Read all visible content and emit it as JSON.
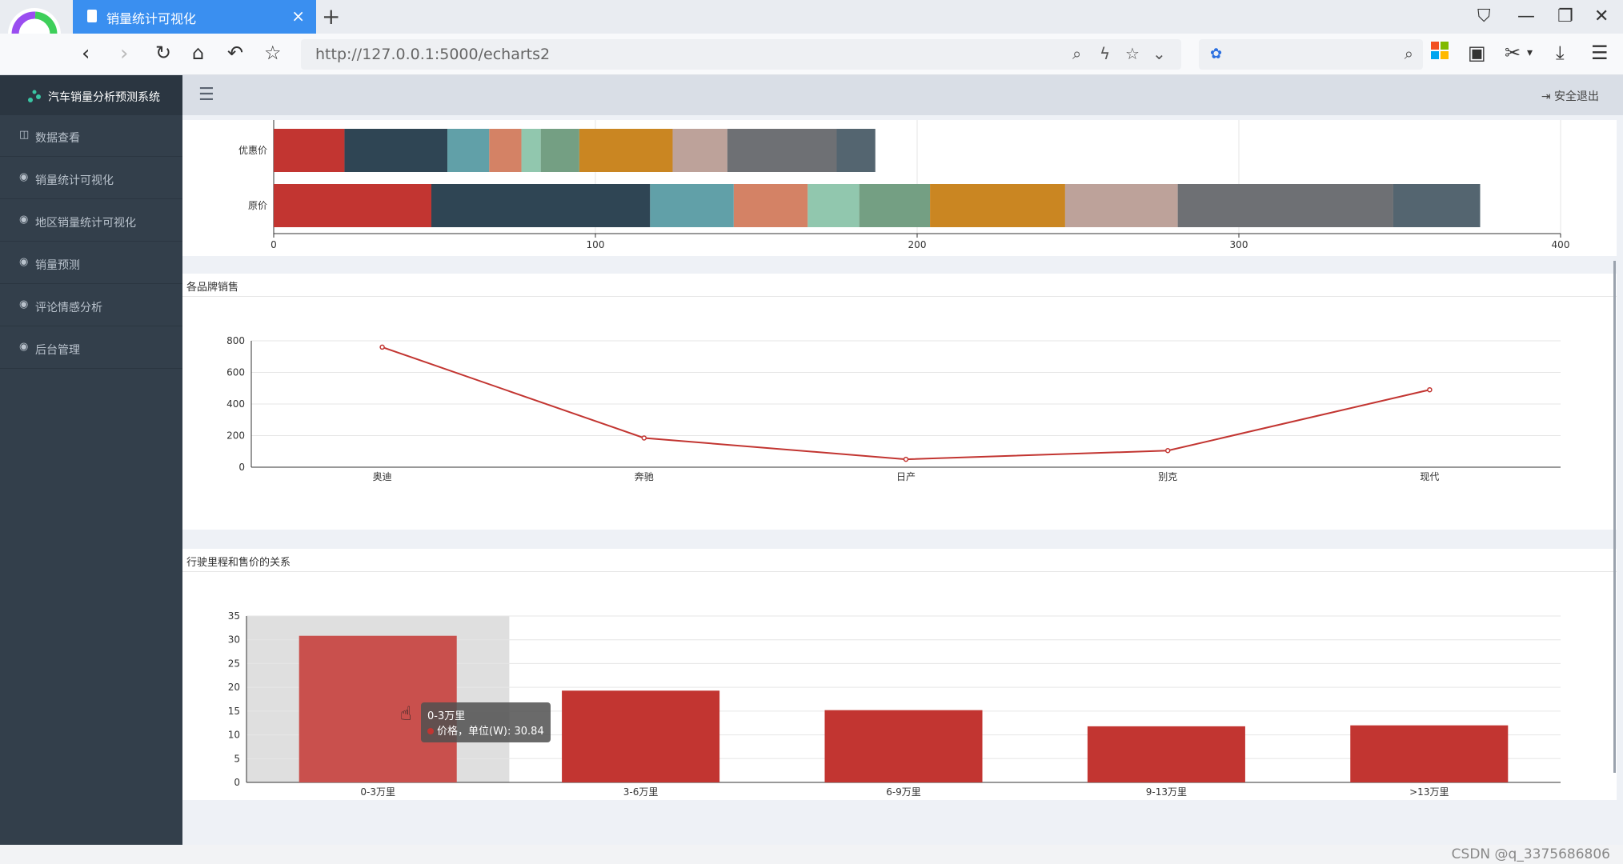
{
  "browser": {
    "tab_title": "销量统计可视化",
    "url": "http://127.0.0.1:5000/echarts2"
  },
  "app": {
    "brand": "汽车销量分析预测系统",
    "logout": "安全退出",
    "menu": [
      {
        "label": "数据查看",
        "icon": "table-icon"
      },
      {
        "label": "销量统计可视化",
        "icon": "dashboard-icon"
      },
      {
        "label": "地区销量统计可视化",
        "icon": "dashboard-icon"
      },
      {
        "label": "销量预测",
        "icon": "dashboard-icon"
      },
      {
        "label": "评论情感分析",
        "icon": "dashboard-icon"
      },
      {
        "label": "后台管理",
        "icon": "dashboard-icon"
      }
    ]
  },
  "chart_data": [
    {
      "type": "bar",
      "orientation": "horizontal",
      "stacked": true,
      "categories": [
        "原价",
        "优惠价"
      ],
      "xlim": [
        0,
        400
      ],
      "xticks": [
        "0",
        "100",
        "200",
        "300",
        "400"
      ],
      "colors": [
        "#c23531",
        "#2f4554",
        "#61a0a8",
        "#d48265",
        "#91c7ae",
        "#749f83",
        "#ca8622",
        "#bda29a",
        "#6e7074",
        "#546570"
      ],
      "series": [
        {
          "values": [
            49,
            22
          ]
        },
        {
          "values": [
            68,
            32
          ]
        },
        {
          "values": [
            26,
            13
          ]
        },
        {
          "values": [
            23,
            10
          ]
        },
        {
          "values": [
            16,
            6
          ]
        },
        {
          "values": [
            22,
            12
          ]
        },
        {
          "values": [
            42,
            29
          ]
        },
        {
          "values": [
            35,
            17
          ]
        },
        {
          "values": [
            67,
            34
          ]
        },
        {
          "values": [
            27,
            12
          ]
        }
      ],
      "grid": true
    },
    {
      "type": "line",
      "title": "各品牌销售",
      "categories": [
        "奥迪",
        "奔驰",
        "日产",
        "别克",
        "现代"
      ],
      "values": [
        760,
        185,
        50,
        105,
        490
      ],
      "ylim": [
        0,
        800
      ],
      "yticks": [
        "0",
        "200",
        "400",
        "600",
        "800"
      ],
      "color": "#c23531",
      "grid": true
    },
    {
      "type": "bar",
      "title": "行驶里程和售价的关系",
      "categories": [
        "0-3万里",
        "3-6万里",
        "6-9万里",
        "9-13万里",
        ">13万里"
      ],
      "values": [
        30.84,
        19.3,
        15.2,
        11.8,
        12
      ],
      "ylim": [
        0,
        35
      ],
      "yticks": [
        "0",
        "5",
        "10",
        "15",
        "20",
        "25",
        "30",
        "35"
      ],
      "color": "#c23531",
      "highlight_index": 0,
      "grid": true,
      "tooltip": {
        "category": "0-3万里",
        "series_label": "价格，单位(W): 30.84"
      }
    }
  ],
  "footer": {
    "watermark": "CSDN @q_3375686806"
  }
}
